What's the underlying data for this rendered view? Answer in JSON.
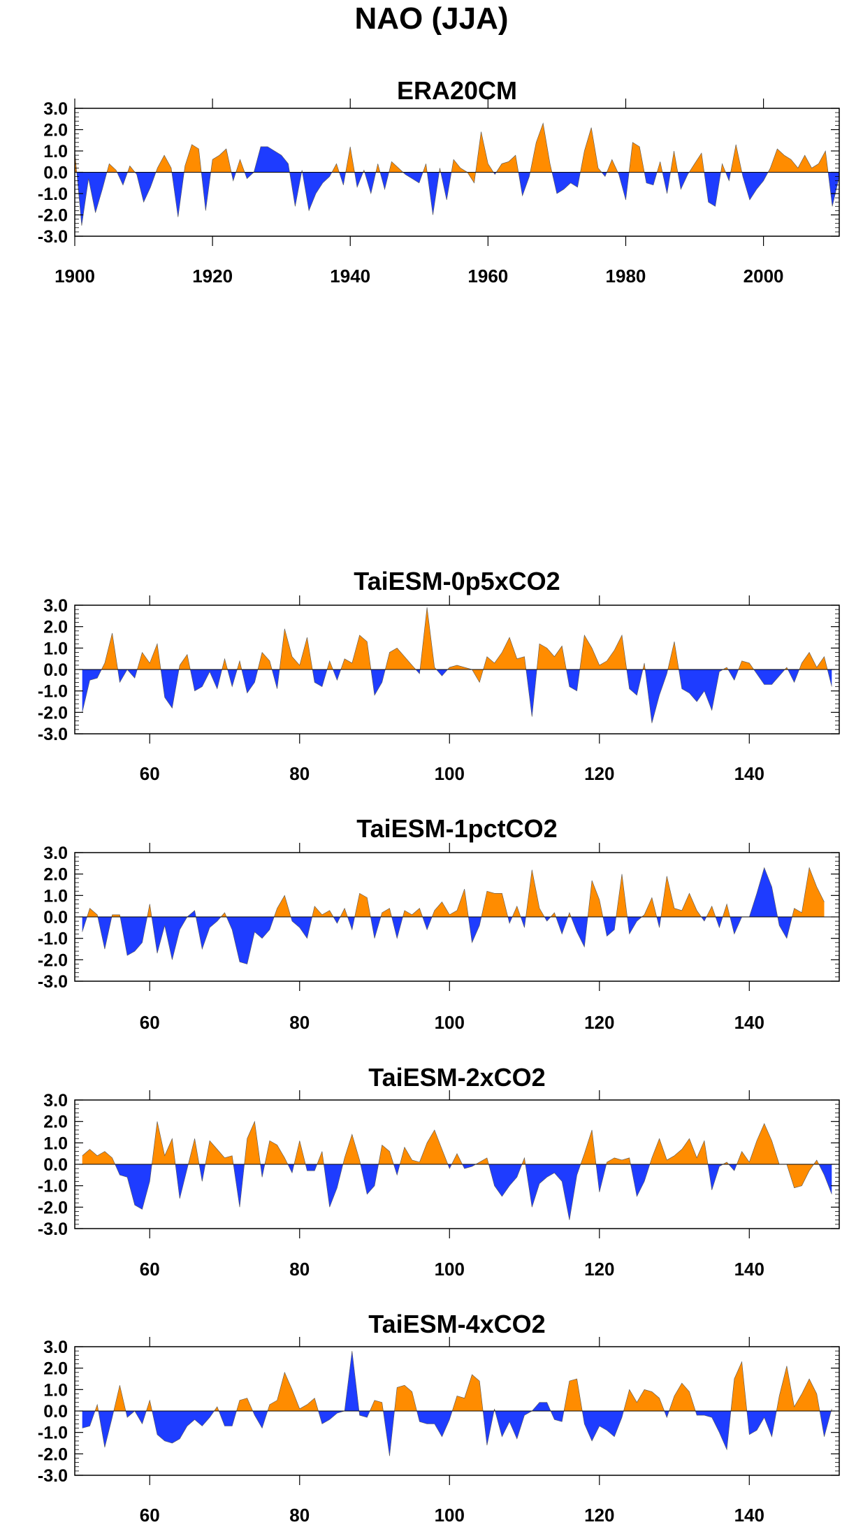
{
  "page": {
    "title": "NAO (JJA)"
  },
  "colors": {
    "positive": "#ff8c00",
    "negative": "#1e3cff",
    "axis": "#000000"
  },
  "chart_data": [
    {
      "type": "area",
      "title": "ERA20CM",
      "x_start": 1900,
      "x_step": 1,
      "xlim": [
        1900,
        2011
      ],
      "xticks": [
        1900,
        1920,
        1940,
        1960,
        1980,
        2000
      ],
      "ylim": [
        -3.0,
        3.0
      ],
      "yticks": [
        "3.0",
        "2.0",
        "1.0",
        "0.0",
        "-1.0",
        "-2.0",
        "-3.0"
      ],
      "baseline": 0,
      "fill_above": "positive",
      "fill_below": "negative",
      "values": [
        1.0,
        -2.5,
        -0.3,
        -1.9,
        -0.8,
        0.4,
        0.1,
        -0.6,
        0.3,
        -0.1,
        -1.4,
        -0.7,
        0.2,
        0.8,
        0.2,
        -2.1,
        0.3,
        1.3,
        1.1,
        -1.8,
        0.6,
        0.8,
        1.1,
        -0.4,
        0.6,
        -0.3,
        0.0,
        1.2,
        1.2,
        1.0,
        0.8,
        0.4,
        -1.6,
        0.1,
        -1.8,
        -1.0,
        -0.5,
        -0.2,
        0.4,
        -0.6,
        1.2,
        -0.7,
        0.1,
        -1.0,
        0.4,
        -0.8,
        0.5,
        0.2,
        -0.1,
        -0.3,
        -0.5,
        0.4,
        -2.0,
        0.2,
        -1.3,
        0.6,
        0.2,
        0.0,
        -0.5,
        1.9,
        0.4,
        -0.1,
        0.4,
        0.5,
        0.8,
        -1.1,
        -0.2,
        1.4,
        2.3,
        0.4,
        -1.0,
        -0.8,
        -0.5,
        -0.7,
        1.0,
        2.1,
        0.2,
        -0.2,
        0.6,
        -0.1,
        -1.3,
        1.4,
        1.2,
        -0.5,
        -0.6,
        0.5,
        -1.0,
        1.0,
        -0.8,
        -0.1,
        0.4,
        0.9,
        -1.4,
        -1.6,
        0.4,
        -0.4,
        1.3,
        -0.2,
        -1.3,
        -0.8,
        -0.4,
        0.2,
        1.1,
        0.8,
        0.6,
        0.2,
        0.8,
        0.2,
        0.4,
        1.0,
        -1.6,
        -0.2
      ]
    },
    {
      "type": "area",
      "title": "TaiESM-0p5xCO2",
      "x_start": 51,
      "x_step": 1,
      "xlim": [
        50,
        152
      ],
      "xticks": [
        60,
        80,
        100,
        120,
        140
      ],
      "ylim": [
        -3.0,
        3.0
      ],
      "yticks": [
        "3.0",
        "2.0",
        "1.0",
        "0.0",
        "-1.0",
        "-2.0",
        "-3.0"
      ],
      "baseline": 0,
      "fill_above": "positive",
      "fill_below": "negative",
      "values": [
        -2.0,
        -0.5,
        -0.4,
        0.3,
        1.7,
        -0.6,
        0.0,
        -0.4,
        0.8,
        0.3,
        1.2,
        -1.3,
        -1.8,
        0.2,
        0.7,
        -1.0,
        -0.8,
        -0.1,
        -0.9,
        0.5,
        -0.8,
        0.4,
        -1.1,
        -0.6,
        0.8,
        0.4,
        -0.9,
        1.9,
        0.6,
        0.2,
        1.5,
        -0.6,
        -0.8,
        0.4,
        -0.5,
        0.5,
        0.3,
        1.6,
        1.3,
        -1.2,
        -0.6,
        0.8,
        1.0,
        0.6,
        0.2,
        -0.2,
        2.9,
        0.1,
        -0.3,
        0.1,
        0.2,
        0.1,
        0.0,
        -0.6,
        0.6,
        0.3,
        0.8,
        1.5,
        0.5,
        0.6,
        -2.2,
        1.2,
        1.0,
        0.6,
        1.1,
        -0.8,
        -1.0,
        1.6,
        1.0,
        0.2,
        0.4,
        0.9,
        1.6,
        -0.9,
        -1.2,
        0.3,
        -2.5,
        -1.2,
        -0.2,
        1.3,
        -0.9,
        -1.1,
        -1.5,
        -1.0,
        -1.9,
        -0.1,
        0.1,
        -0.5,
        0.4,
        0.3,
        -0.2,
        -0.7,
        -0.7,
        -0.3,
        0.1,
        -0.6,
        0.3,
        0.8,
        0.1,
        0.6,
        -0.8
      ]
    },
    {
      "type": "area",
      "title": "TaiESM-1pctCO2",
      "x_start": 51,
      "x_step": 1,
      "xlim": [
        50,
        152
      ],
      "xticks": [
        60,
        80,
        100,
        120,
        140
      ],
      "ylim": [
        -3.0,
        3.0
      ],
      "yticks": [
        "3.0",
        "2.0",
        "1.0",
        "0.0",
        "-1.0",
        "-2.0",
        "-3.0"
      ],
      "baseline": 0,
      "fill_above": "positive",
      "fill_below": "negative",
      "values": [
        -0.7,
        0.4,
        0.1,
        -1.5,
        0.1,
        0.1,
        -1.8,
        -1.6,
        -1.2,
        0.6,
        -1.7,
        -0.4,
        -2.0,
        -0.6,
        0.0,
        0.3,
        -1.5,
        -0.5,
        -0.2,
        0.2,
        -0.6,
        -2.1,
        -2.2,
        -0.7,
        -1.0,
        -0.6,
        0.4,
        1.0,
        -0.2,
        -0.5,
        -1.0,
        0.5,
        0.1,
        0.3,
        -0.3,
        0.4,
        -0.6,
        1.1,
        0.9,
        -1.0,
        0.2,
        0.4,
        -1.0,
        0.3,
        0.1,
        0.4,
        -0.6,
        0.3,
        0.7,
        0.1,
        0.3,
        1.3,
        -1.2,
        -0.4,
        1.2,
        1.1,
        1.1,
        -0.3,
        0.5,
        -0.5,
        2.2,
        0.4,
        -0.2,
        0.2,
        -0.8,
        0.2,
        -0.7,
        -1.4,
        1.7,
        0.8,
        -0.9,
        -0.6,
        2.0,
        -0.8,
        -0.2,
        0.1,
        0.9,
        -0.5,
        1.9,
        0.4,
        0.3,
        1.1,
        0.3,
        -0.2,
        0.5,
        -0.5,
        0.6,
        -0.8,
        0.0,
        0.0,
        1.1,
        2.3,
        1.4,
        -0.4,
        -1.0,
        0.4,
        0.2,
        2.3,
        1.4,
        0.7
      ]
    },
    {
      "type": "area",
      "title": "TaiESM-2xCO2",
      "x_start": 51,
      "x_step": 1,
      "xlim": [
        50,
        152
      ],
      "xticks": [
        60,
        80,
        100,
        120,
        140
      ],
      "ylim": [
        -3.0,
        3.0
      ],
      "yticks": [
        "3.0",
        "2.0",
        "1.0",
        "0.0",
        "-1.0",
        "-2.0",
        "-3.0"
      ],
      "baseline": 0,
      "fill_above": "positive",
      "fill_below": "negative",
      "values": [
        0.4,
        0.7,
        0.4,
        0.6,
        0.3,
        -0.5,
        -0.6,
        -1.9,
        -2.1,
        -0.8,
        2.0,
        0.4,
        1.2,
        -1.6,
        -0.2,
        1.2,
        -0.8,
        1.1,
        0.7,
        0.3,
        0.4,
        -2.0,
        1.2,
        2.0,
        -0.6,
        1.1,
        0.9,
        0.3,
        -0.4,
        1.1,
        -0.3,
        -0.3,
        0.6,
        -2.0,
        -1.1,
        0.3,
        1.4,
        0.2,
        -1.4,
        -1.0,
        0.9,
        0.6,
        -0.5,
        0.8,
        0.2,
        0.1,
        1.0,
        1.6,
        0.7,
        -0.2,
        0.5,
        -0.2,
        -0.1,
        0.1,
        0.3,
        -1.0,
        -1.5,
        -1.0,
        -0.6,
        0.3,
        -2.0,
        -0.9,
        -0.6,
        -0.4,
        -0.8,
        -2.6,
        -0.5,
        0.5,
        1.6,
        -1.3,
        0.1,
        0.3,
        0.2,
        0.3,
        -1.5,
        -0.8,
        0.3,
        1.2,
        0.2,
        0.4,
        0.7,
        1.2,
        0.3,
        1.1,
        -1.2,
        -0.1,
        0.1,
        -0.3,
        0.6,
        0.1,
        1.1,
        1.9,
        1.1,
        0.0,
        0.0,
        -1.1,
        -1.0,
        -0.3,
        0.2,
        -0.5,
        -1.4
      ]
    },
    {
      "type": "area",
      "title": "TaiESM-4xCO2",
      "x_start": 51,
      "x_step": 1,
      "xlim": [
        50,
        152
      ],
      "xticks": [
        60,
        80,
        100,
        120,
        140
      ],
      "ylim": [
        -3.0,
        3.0
      ],
      "yticks": [
        "3.0",
        "2.0",
        "1.0",
        "0.0",
        "-1.0",
        "-2.0",
        "-3.0"
      ],
      "baseline": 0,
      "fill_above": "positive",
      "fill_below": "negative",
      "values": [
        -0.8,
        -0.7,
        0.3,
        -1.7,
        -0.3,
        1.2,
        -0.3,
        0.0,
        -0.6,
        0.5,
        -1.1,
        -1.4,
        -1.5,
        -1.3,
        -0.7,
        -0.4,
        -0.7,
        -0.3,
        0.2,
        -0.7,
        -0.7,
        0.5,
        0.6,
        -0.2,
        -0.8,
        0.3,
        0.5,
        1.8,
        1.0,
        0.1,
        0.3,
        0.6,
        -0.6,
        -0.4,
        -0.1,
        0.0,
        2.8,
        -0.2,
        -0.3,
        0.5,
        0.4,
        -2.1,
        1.1,
        1.2,
        0.9,
        -0.5,
        -0.6,
        -0.6,
        -1.2,
        -0.4,
        0.7,
        0.6,
        1.7,
        1.4,
        -1.6,
        0.1,
        -1.2,
        -0.5,
        -1.3,
        -0.2,
        0.0,
        0.4,
        0.4,
        -0.4,
        -0.5,
        1.4,
        1.5,
        -0.6,
        -1.4,
        -0.7,
        -0.9,
        -1.2,
        -0.3,
        1.0,
        0.4,
        1.0,
        0.9,
        0.6,
        -0.3,
        0.7,
        1.3,
        0.9,
        -0.2,
        -0.2,
        -0.3,
        -1.0,
        -1.8,
        1.5,
        2.3,
        -1.1,
        -0.9,
        -0.3,
        -1.2,
        0.7,
        2.1,
        0.2,
        0.8,
        1.5,
        0.8,
        -1.2,
        0.1
      ]
    }
  ]
}
